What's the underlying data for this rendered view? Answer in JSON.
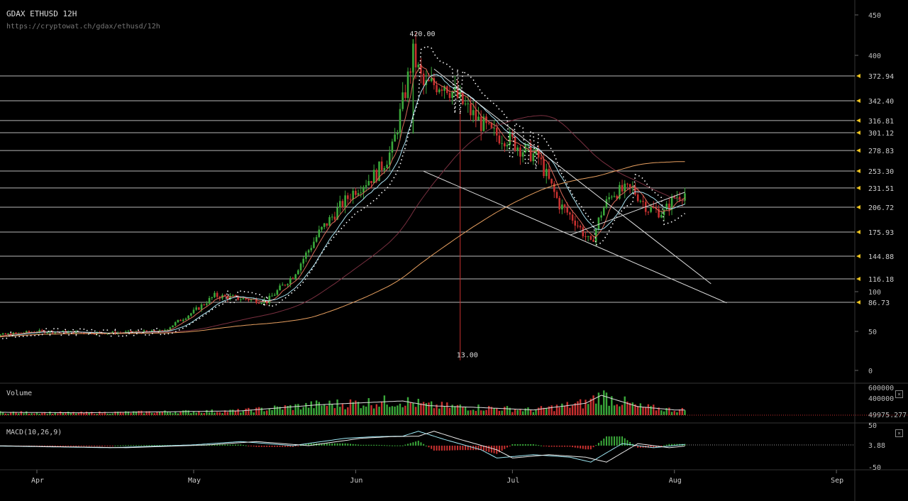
{
  "header": {
    "title": "GDAX ETHUSD 12H",
    "url": "https://cryptowat.ch/gdax/ethusd/12h"
  },
  "colors": {
    "background": "#000000",
    "up": "#3aa83a",
    "down": "#c8302f",
    "ma_fast": "#d86a5a",
    "ma_mid": "#a8e0ee",
    "ma_slow": "#7a3040",
    "ma_long": "#e8a060",
    "sar": "#ffffff",
    "level_line": "#d8d8d8",
    "level_marker": "#e8c020"
  },
  "chart_data": {
    "type": "candlestick",
    "ylim": [
      0,
      450
    ],
    "y_ticks": [
      "450",
      "400",
      "100",
      "50",
      "0"
    ],
    "x_ticks": [
      "Apr",
      "May",
      "Jun",
      "Jul",
      "Aug",
      "Sep"
    ],
    "x_tick_dates": [
      "2017-04-01",
      "2017-05-01",
      "2017-06-01",
      "2017-07-01",
      "2017-08-01",
      "2017-09-01"
    ],
    "price_levels": [
      "372.94",
      "342.40",
      "316.81",
      "301.12",
      "278.83",
      "253.30",
      "231.51",
      "206.72",
      "175.93",
      "144.88",
      "116.18",
      "86.73"
    ],
    "annotations": [
      {
        "text": "420.00",
        "x": "2017-06-12",
        "y": 420
      },
      {
        "text": "13.00",
        "x": "2017-06-21",
        "y": 13
      }
    ],
    "series_close": [
      [
        "2017-03-20",
        42
      ],
      [
        "2017-04-01",
        50
      ],
      [
        "2017-04-15",
        48
      ],
      [
        "2017-04-25",
        50
      ],
      [
        "2017-05-01",
        75
      ],
      [
        "2017-05-05",
        95
      ],
      [
        "2017-05-15",
        88
      ],
      [
        "2017-05-20",
        120
      ],
      [
        "2017-05-25",
        175
      ],
      [
        "2017-05-30",
        215
      ],
      [
        "2017-06-01",
        230
      ],
      [
        "2017-06-05",
        250
      ],
      [
        "2017-06-08",
        280
      ],
      [
        "2017-06-10",
        340
      ],
      [
        "2017-06-12",
        400
      ],
      [
        "2017-06-14",
        360
      ],
      [
        "2017-06-18",
        365
      ],
      [
        "2017-06-20",
        350
      ],
      [
        "2017-06-24",
        320
      ],
      [
        "2017-06-27",
        300
      ],
      [
        "2017-06-30",
        295
      ],
      [
        "2017-07-03",
        280
      ],
      [
        "2017-07-06",
        270
      ],
      [
        "2017-07-10",
        210
      ],
      [
        "2017-07-13",
        190
      ],
      [
        "2017-07-16",
        160
      ],
      [
        "2017-07-18",
        200
      ],
      [
        "2017-07-20",
        225
      ],
      [
        "2017-07-24",
        230
      ],
      [
        "2017-07-27",
        205
      ],
      [
        "2017-07-30",
        200
      ],
      [
        "2017-08-01",
        220
      ],
      [
        "2017-08-03",
        225
      ]
    ],
    "trendlines": [
      {
        "from": [
          "2017-06-16",
          382
        ],
        "to": [
          "2017-08-08",
          110
        ]
      },
      {
        "from": [
          "2017-06-14",
          253
        ],
        "to": [
          "2017-08-11",
          86
        ]
      },
      {
        "from": [
          "2017-07-12",
          172
        ],
        "to": [
          "2017-08-03",
          226
        ]
      }
    ],
    "volume": {
      "label": "Volume",
      "y_ticks": [
        "600000",
        "400000",
        "49975.277"
      ],
      "values": [
        [
          "2017-03-25",
          60000
        ],
        [
          "2017-04-10",
          50000
        ],
        [
          "2017-05-10",
          90000
        ],
        [
          "2017-05-25",
          220000
        ],
        [
          "2017-06-10",
          300000
        ],
        [
          "2017-06-15",
          200000
        ],
        [
          "2017-06-25",
          160000
        ],
        [
          "2017-07-05",
          110000
        ],
        [
          "2017-07-15",
          250000
        ],
        [
          "2017-07-18",
          420000
        ],
        [
          "2017-07-25",
          180000
        ],
        [
          "2017-08-01",
          110000
        ]
      ]
    },
    "macd": {
      "label": "MACD(10,26,9)",
      "y_ticks": [
        "50",
        "3.88",
        "-50"
      ],
      "values": [
        [
          "2017-03-20",
          0
        ],
        [
          "2017-04-15",
          -5
        ],
        [
          "2017-05-01",
          2
        ],
        [
          "2017-05-10",
          10
        ],
        [
          "2017-05-20",
          0
        ],
        [
          "2017-05-30",
          18
        ],
        [
          "2017-06-05",
          22
        ],
        [
          "2017-06-10",
          23
        ],
        [
          "2017-06-13",
          35
        ],
        [
          "2017-06-18",
          15
        ],
        [
          "2017-06-25",
          -10
        ],
        [
          "2017-06-28",
          -30
        ],
        [
          "2017-07-05",
          -22
        ],
        [
          "2017-07-12",
          -28
        ],
        [
          "2017-07-16",
          -40
        ],
        [
          "2017-07-22",
          5
        ],
        [
          "2017-07-28",
          -5
        ],
        [
          "2017-08-03",
          3
        ]
      ]
    }
  }
}
